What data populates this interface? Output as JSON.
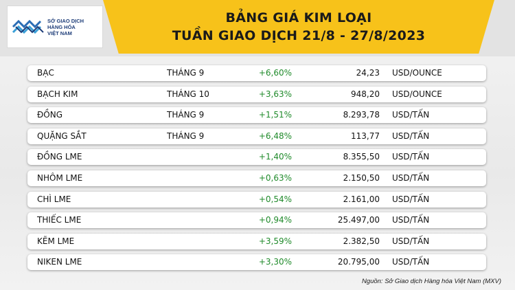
{
  "logo": {
    "line1": "SỞ GIAO DỊCH",
    "line2": "HÀNG HÓA",
    "line3": "VIỆT NAM"
  },
  "title": {
    "line1": "BẢNG GIÁ KIM LOẠI",
    "line2": "TUẦN GIAO DỊCH 21/8 - 27/8/2023"
  },
  "colors": {
    "title_band": "#f7c21a",
    "positive_change": "#1f8a2a",
    "logo_blue": "#1d3c78"
  },
  "rows": [
    {
      "name": "BẠC",
      "month": "THÁNG 9",
      "change": "+6,60%",
      "price": "24,23",
      "unit": "USD/OUNCE"
    },
    {
      "name": "BẠCH KIM",
      "month": "THÁNG 10",
      "change": "+3,63%",
      "price": "948,20",
      "unit": "USD/OUNCE"
    },
    {
      "name": "ĐỒNG",
      "month": "THÁNG 9",
      "change": "+1,51%",
      "price": "8.293,78",
      "unit": "USD/TẤN"
    },
    {
      "name": "QUẶNG SẮT",
      "month": "THÁNG 9",
      "change": "+6,48%",
      "price": "113,77",
      "unit": "USD/TẤN"
    },
    {
      "name": "ĐỒNG LME",
      "month": "",
      "change": "+1,40%",
      "price": "8.355,50",
      "unit": "USD/TẤN"
    },
    {
      "name": "NHÔM LME",
      "month": "",
      "change": "+0,63%",
      "price": "2.150,50",
      "unit": "USD/TẤN"
    },
    {
      "name": "CHÌ LME",
      "month": "",
      "change": "+0,54%",
      "price": "2.161,00",
      "unit": "USD/TẤN"
    },
    {
      "name": "THIẾC LME",
      "month": "",
      "change": "+0,94%",
      "price": "25.497,00",
      "unit": "USD/TẤN"
    },
    {
      "name": "KẼM LME",
      "month": "",
      "change": "+3,59%",
      "price": "2.382,50",
      "unit": "USD/TẤN"
    },
    {
      "name": "NIKEN LME",
      "month": "",
      "change": "+3,30%",
      "price": "20.795,00",
      "unit": "USD/TẤN"
    }
  ],
  "source": "Nguồn: Sở Giao dịch Hàng hóa Việt Nam (MXV)"
}
